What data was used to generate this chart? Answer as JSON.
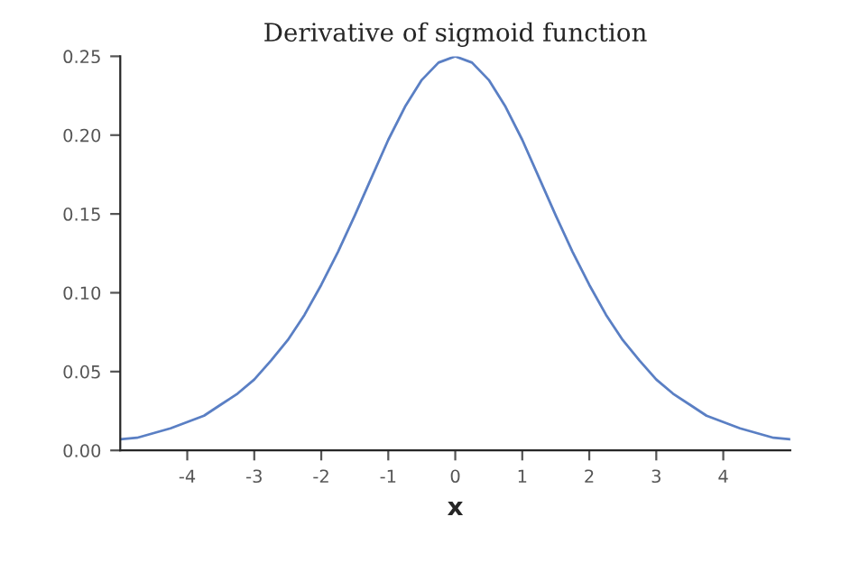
{
  "chart_data": {
    "type": "line",
    "title": "Derivative of sigmoid function",
    "xlabel": "x",
    "x": [
      -5,
      -4.75,
      -4.5,
      -4.25,
      -4,
      -3.75,
      -3.5,
      -3.25,
      -3,
      -2.75,
      -2.5,
      -2.25,
      -2,
      -1.75,
      -1.5,
      -1.25,
      -1,
      -0.75,
      -0.5,
      -0.25,
      0,
      0.25,
      0.5,
      0.75,
      1,
      1.25,
      1.5,
      1.75,
      2,
      2.25,
      2.5,
      2.75,
      3,
      3.25,
      3.5,
      3.75,
      4,
      4.25,
      4.5,
      4.75,
      5
    ],
    "series": [
      {
        "color": "#5a7fc4",
        "values": [
          0.007,
          0.008,
          0.011,
          0.014,
          0.018,
          0.022,
          0.029,
          0.036,
          0.045,
          0.057,
          0.07,
          0.086,
          0.105,
          0.126,
          0.149,
          0.173,
          0.197,
          0.218,
          0.235,
          0.246,
          0.25,
          0.246,
          0.235,
          0.218,
          0.197,
          0.173,
          0.149,
          0.126,
          0.105,
          0.086,
          0.07,
          0.057,
          0.045,
          0.036,
          0.029,
          0.022,
          0.018,
          0.014,
          0.011,
          0.008,
          0.007
        ]
      }
    ],
    "xlim": [
      -5,
      5
    ],
    "xticks": [
      -4,
      -3,
      -2,
      -1,
      0,
      1,
      2,
      3,
      4
    ],
    "ylim": [
      0,
      0.25
    ],
    "yticks": [
      {
        "value": 0,
        "label": "0.00"
      },
      {
        "value": 0.05,
        "label": "0.05"
      },
      {
        "value": 0.1,
        "label": "0.10"
      },
      {
        "value": 0.15,
        "label": "0.15"
      },
      {
        "value": 0.2,
        "label": "0.20"
      },
      {
        "value": 0.25,
        "label": "0.25"
      }
    ],
    "grid": false,
    "legend": false
  }
}
